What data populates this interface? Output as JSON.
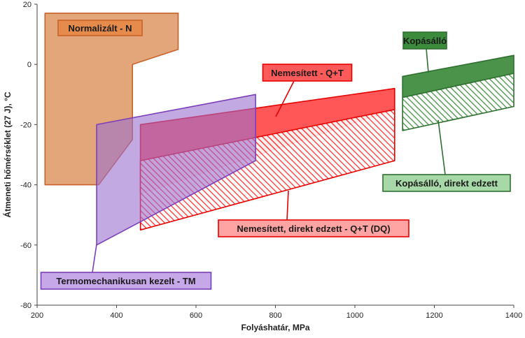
{
  "chart_data": {
    "type": "area",
    "title": "",
    "xlabel": "Folyáshatár, MPa",
    "ylabel": "Átmeneti hőmérséklet (27 J), °C",
    "xlim": [
      200,
      1400
    ],
    "ylim": [
      -80,
      20
    ],
    "x_ticks": [
      200,
      400,
      600,
      800,
      1000,
      1200,
      1400
    ],
    "y_ticks": [
      20,
      0,
      -20,
      -40,
      -60,
      -80
    ],
    "grid": false,
    "colors": {
      "normalized": "#d9884f",
      "tm": "#9b6fcf",
      "qt": "#ff1f1f",
      "wear": "#3c8a3c"
    },
    "series": [
      {
        "name": "Normalizált - N",
        "polygon_x": [
          220,
          220,
          440,
          440,
          555,
          555,
          350,
          220
        ],
        "polygon_y": [
          -40,
          17,
          17,
          17,
          17,
          5,
          0,
          -40
        ],
        "outline_x": [
          220,
          220,
          555,
          555,
          440,
          440,
          355,
          220
        ],
        "outline_y": [
          -40,
          17,
          17,
          5,
          0,
          -25,
          -40,
          -40
        ]
      },
      {
        "name": "Termomechanikusan kezelt - TM",
        "polygon_x": [
          350,
          750,
          750,
          350
        ],
        "polygon_y": [
          -20,
          -10,
          -32,
          -60
        ]
      },
      {
        "name": "Nemesített - Q+T",
        "polygon_x": [
          460,
          1100,
          1100,
          460
        ],
        "polygon_y": [
          -20,
          -8,
          -15,
          -43
        ]
      },
      {
        "name": "Nemesített, direkt edzett - Q+T (DQ)",
        "hatched": true,
        "polygon_x": [
          460,
          1100,
          1100,
          460
        ],
        "polygon_y": [
          -32,
          -15,
          -32,
          -55
        ]
      },
      {
        "name": "Kopásálló",
        "polygon_x": [
          1120,
          1400,
          1400,
          1120
        ],
        "polygon_y": [
          -4,
          3,
          -3,
          -11
        ]
      },
      {
        "name": "Kopásálló, direkt edzett",
        "hatched": true,
        "polygon_x": [
          1120,
          1400,
          1400,
          1120
        ],
        "polygon_y": [
          -11,
          -3,
          -14,
          -22
        ]
      }
    ],
    "annotations": [
      {
        "text": "Normalizált - N",
        "series": 0
      },
      {
        "text": "Termomechanikusan kezelt - TM",
        "series": 1
      },
      {
        "text": "Nemesített - Q+T",
        "series": 2
      },
      {
        "text": "Nemesített, direkt edzett - Q+T (DQ)",
        "series": 3
      },
      {
        "text": "Kopásálló",
        "series": 4
      },
      {
        "text": "Kopásálló, direkt edzett",
        "series": 5
      }
    ]
  }
}
